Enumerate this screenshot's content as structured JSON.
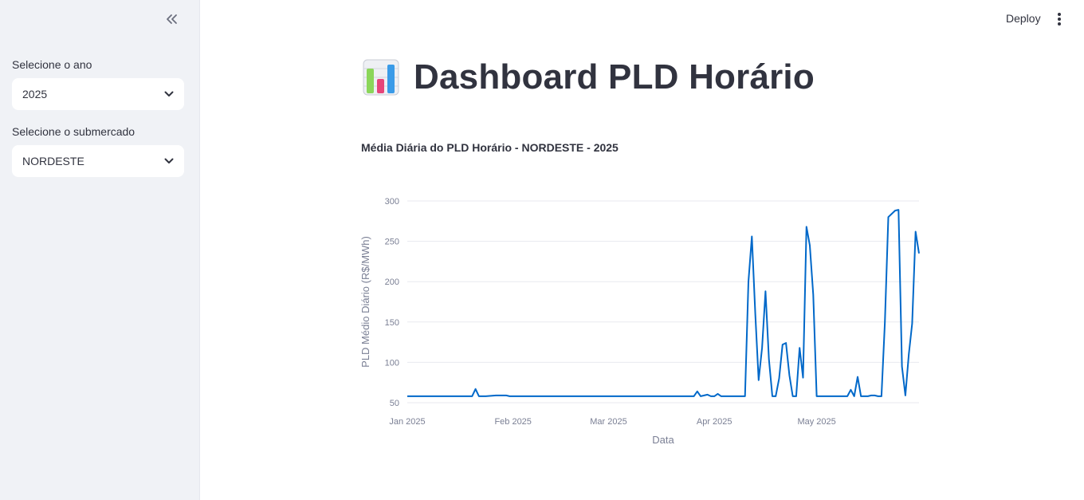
{
  "sidebar": {
    "collapse_icon": "double-chevron-left-icon",
    "year_label": "Selecione o ano",
    "year_value": "2025",
    "submarket_label": "Selecione o submercado",
    "submarket_value": "NORDESTE"
  },
  "header": {
    "deploy_label": "Deploy",
    "menu_icon": "vertical-ellipsis-icon"
  },
  "main": {
    "title_icon": "bar-chart-icon",
    "title": "Dashboard PLD Horário"
  },
  "chart_data": {
    "type": "line",
    "title": "Média Diária do PLD Horário - NORDESTE - 2025",
    "xlabel": "Data",
    "ylabel": "PLD Médio Diário (R$/MWh)",
    "x_ticks": [
      "Jan 2025",
      "Feb 2025",
      "Mar 2025",
      "Apr 2025",
      "May 2025"
    ],
    "y_ticks": [
      50,
      100,
      150,
      200,
      250,
      300
    ],
    "xlim": [
      "2025-01-01",
      "2025-05-31"
    ],
    "ylim": [
      50,
      300
    ],
    "grid": true,
    "line_color": "#0068c9",
    "series": [
      {
        "x": [
          "2025-01-01",
          "2025-01-10",
          "2025-01-20",
          "2025-01-21",
          "2025-01-22",
          "2025-01-24",
          "2025-01-27",
          "2025-01-30",
          "2025-01-31",
          "2025-02-01",
          "2025-02-10",
          "2025-02-20",
          "2025-03-01",
          "2025-03-10",
          "2025-03-20",
          "2025-03-26",
          "2025-03-27",
          "2025-03-28",
          "2025-03-30",
          "2025-03-31",
          "2025-04-01",
          "2025-04-02",
          "2025-04-03",
          "2025-04-04",
          "2025-04-05",
          "2025-04-10",
          "2025-04-11",
          "2025-04-12",
          "2025-04-13",
          "2025-04-14",
          "2025-04-15",
          "2025-04-16",
          "2025-04-17",
          "2025-04-18",
          "2025-04-19",
          "2025-04-20",
          "2025-04-21",
          "2025-04-22",
          "2025-04-23",
          "2025-04-24",
          "2025-04-25",
          "2025-04-26",
          "2025-04-27",
          "2025-04-28",
          "2025-04-29",
          "2025-04-30",
          "2025-05-01",
          "2025-05-02",
          "2025-05-03",
          "2025-05-04",
          "2025-05-05",
          "2025-05-10",
          "2025-05-11",
          "2025-05-12",
          "2025-05-13",
          "2025-05-14",
          "2025-05-16",
          "2025-05-17",
          "2025-05-18",
          "2025-05-19",
          "2025-05-20",
          "2025-05-21",
          "2025-05-22",
          "2025-05-24",
          "2025-05-25",
          "2025-05-26",
          "2025-05-27",
          "2025-05-28",
          "2025-05-29",
          "2025-05-30",
          "2025-05-31"
        ],
        "y": [
          58,
          58,
          58,
          67,
          58,
          58,
          59,
          59,
          58,
          58,
          58,
          58,
          58,
          58,
          58,
          58,
          64,
          58,
          60,
          58,
          58,
          61,
          58,
          58,
          58,
          58,
          200,
          256,
          160,
          78,
          118,
          188,
          104,
          58,
          58,
          80,
          122,
          124,
          84,
          58,
          58,
          118,
          81,
          268,
          245,
          184,
          58,
          58,
          58,
          58,
          58,
          58,
          66,
          58,
          82,
          58,
          58,
          59,
          59,
          58,
          58,
          150,
          280,
          288,
          289,
          95,
          59,
          110,
          148,
          262,
          235
        ]
      }
    ]
  }
}
